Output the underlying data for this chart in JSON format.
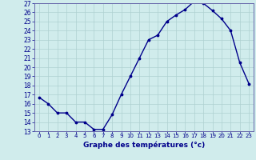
{
  "hours": [
    0,
    1,
    2,
    3,
    4,
    5,
    6,
    7,
    8,
    9,
    10,
    11,
    12,
    13,
    14,
    15,
    16,
    17,
    18,
    19,
    20,
    21,
    22,
    23
  ],
  "temps": [
    16.7,
    16.0,
    15.0,
    15.0,
    14.0,
    14.0,
    13.2,
    13.2,
    14.8,
    17.0,
    19.0,
    21.0,
    23.0,
    23.5,
    25.0,
    25.7,
    26.3,
    27.2,
    27.0,
    26.2,
    25.3,
    24.0,
    20.5,
    18.2
  ],
  "ylim": [
    13,
    27
  ],
  "yticks": [
    13,
    14,
    15,
    16,
    17,
    18,
    19,
    20,
    21,
    22,
    23,
    24,
    25,
    26,
    27
  ],
  "xtick_labels": [
    "0",
    "1",
    "2",
    "3",
    "4",
    "5",
    "6",
    "7",
    "8",
    "9",
    "10",
    "11",
    "12",
    "13",
    "14",
    "15",
    "16",
    "17",
    "18",
    "19",
    "20",
    "21",
    "22",
    "23"
  ],
  "xlabel": "Graphe des températures (°c)",
  "line_color": "#00008b",
  "marker_color": "#00008b",
  "bg_color": "#d0ecec",
  "grid_color": "#aed0d0",
  "axis_color": "#6666aa",
  "label_color": "#00008b",
  "title_color": "#00008b"
}
